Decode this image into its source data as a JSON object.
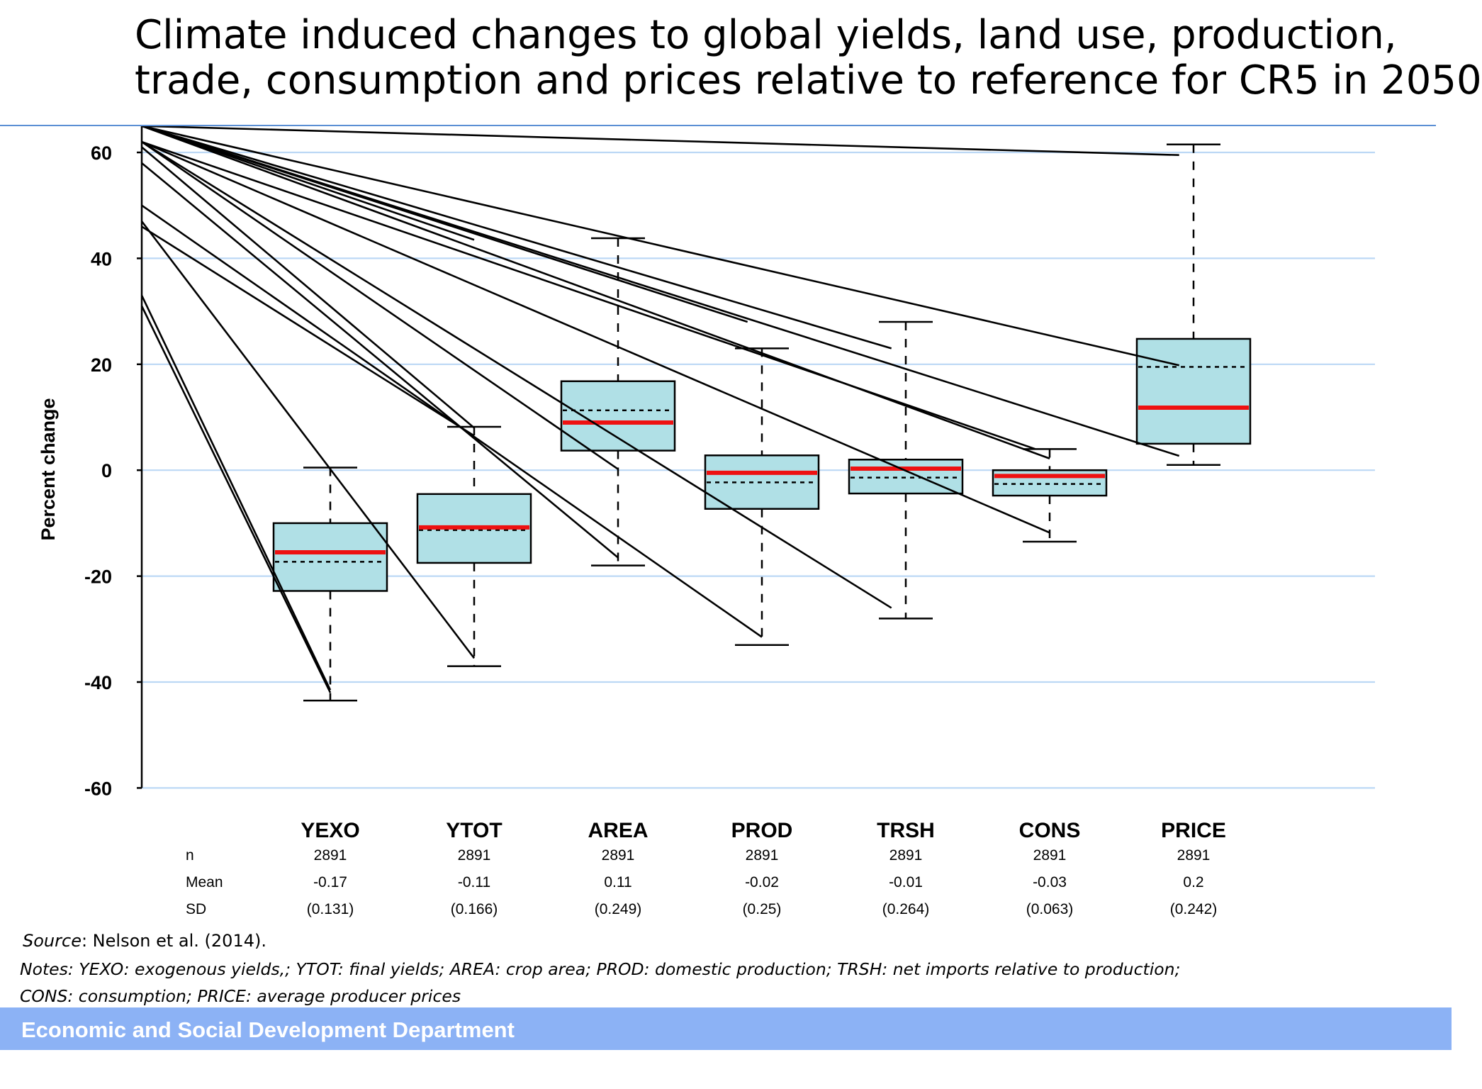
{
  "title": {
    "line1": "Climate induced changes to global yields, land use, production,",
    "line2": "trade, consumption and prices relative to reference for CR5 in 2050"
  },
  "chart_data": {
    "type": "boxplot",
    "ylabel": "Percent change",
    "ylim": [
      -60,
      60
    ],
    "yticks": [
      60,
      40,
      20,
      0,
      -20,
      -40,
      -60
    ],
    "grid": true,
    "categories": [
      "YEXO",
      "YTOT",
      "AREA",
      "PROD",
      "TRSH",
      "CONS",
      "PRICE"
    ],
    "boxes": [
      {
        "name": "YEXO",
        "whisker_low": -43.5,
        "q1": -22.8,
        "median": -15.5,
        "mean_line": -17.3,
        "q3": -10.0,
        "whisker_high": 0.5
      },
      {
        "name": "YTOT",
        "whisker_low": -37.0,
        "q1": -17.5,
        "median": -10.8,
        "mean_line": -11.3,
        "q3": -4.5,
        "whisker_high": 8.2
      },
      {
        "name": "AREA",
        "whisker_low": -18.0,
        "q1": 3.7,
        "median": 9.0,
        "mean_line": 11.3,
        "q3": 16.8,
        "whisker_high": 43.8
      },
      {
        "name": "PROD",
        "whisker_low": -33.0,
        "q1": -7.3,
        "median": -0.5,
        "mean_line": -2.3,
        "q3": 2.8,
        "whisker_high": 23.0
      },
      {
        "name": "TRSH",
        "whisker_low": -28.0,
        "q1": -4.4,
        "median": 0.3,
        "mean_line": -1.4,
        "q3": 2.0,
        "whisker_high": 28.0
      },
      {
        "name": "CONS",
        "whisker_low": -13.5,
        "q1": -4.8,
        "median": -1.1,
        "mean_line": -2.6,
        "q3": 0.0,
        "whisker_high": 4.0
      },
      {
        "name": "PRICE",
        "whisker_low": 1.0,
        "q1": 5.0,
        "median": 11.8,
        "mean_line": 19.5,
        "q3": 24.8,
        "whisker_high": 61.5
      }
    ],
    "annotation_lines": [
      {
        "from": [
          -60,
          65
        ],
        "to": [
          5.9,
          59.5
        ]
      },
      {
        "from": [
          -60,
          65
        ],
        "to": [
          1.0,
          43.5
        ]
      },
      {
        "from": [
          -60,
          65
        ],
        "to": [
          5.9,
          19.8
        ]
      },
      {
        "from": [
          -60,
          65
        ],
        "to": [
          5.9,
          2.7
        ]
      },
      {
        "from": [
          -60,
          65
        ],
        "to": [
          2.9,
          28.0
        ]
      },
      {
        "from": [
          -60,
          65
        ],
        "to": [
          3.9,
          23.0
        ]
      },
      {
        "from": [
          -60,
          65
        ],
        "to": [
          5.0,
          2.2
        ]
      },
      {
        "from": [
          -60,
          62
        ],
        "to": [
          4.9,
          4.0
        ]
      },
      {
        "from": [
          -60,
          62
        ],
        "to": [
          5.0,
          -11.8
        ]
      },
      {
        "from": [
          -60,
          62
        ],
        "to": [
          2.0,
          0.2
        ]
      },
      {
        "from": [
          -60,
          62
        ],
        "to": [
          3.9,
          -26.0
        ]
      },
      {
        "from": [
          -60,
          61
        ],
        "to": [
          1.0,
          8.0
        ]
      },
      {
        "from": [
          -60,
          58
        ],
        "to": [
          2.0,
          -16.5
        ]
      },
      {
        "from": [
          -60,
          50
        ],
        "to": [
          3.0,
          -31.5
        ]
      },
      {
        "from": [
          -60,
          47
        ],
        "to": [
          1.0,
          -35.5
        ]
      },
      {
        "from": [
          -60,
          46
        ],
        "to": [
          1.0,
          6.5
        ]
      },
      {
        "from": [
          -60,
          33
        ],
        "to": [
          0.0,
          -41.5
        ]
      },
      {
        "from": [
          -60,
          31
        ],
        "to": [
          0.0,
          -42.0
        ]
      }
    ]
  },
  "stats": {
    "rows": [
      {
        "label": "n",
        "values": [
          "2891",
          "2891",
          "2891",
          "2891",
          "2891",
          "2891",
          "2891"
        ]
      },
      {
        "label": "Mean",
        "values": [
          "-0.17",
          "-0.11",
          "0.11",
          "-0.02",
          "-0.01",
          "-0.03",
          "0.2"
        ]
      },
      {
        "label": "SD",
        "values": [
          "(0.131)",
          "(0.166)",
          "(0.249)",
          "(0.25)",
          "(0.264)",
          "(0.063)",
          "(0.242)"
        ]
      }
    ]
  },
  "source": {
    "label": "Source",
    "text": ": Nelson et al. (2014)."
  },
  "notes": {
    "line1": "Notes: YEXO: exogenous yields,; YTOT: final yields; AREA: crop area; PROD: domestic production; TRSH: net imports relative to production;",
    "line2": "CONS: consumption; PRICE: average producer prices"
  },
  "footer": {
    "text": "Economic and Social Development Department"
  },
  "colors": {
    "box_fill": "#b0e0e6",
    "median": "#ee1111",
    "grid": "#bcd8f5",
    "footer": "#8cb2f5"
  }
}
